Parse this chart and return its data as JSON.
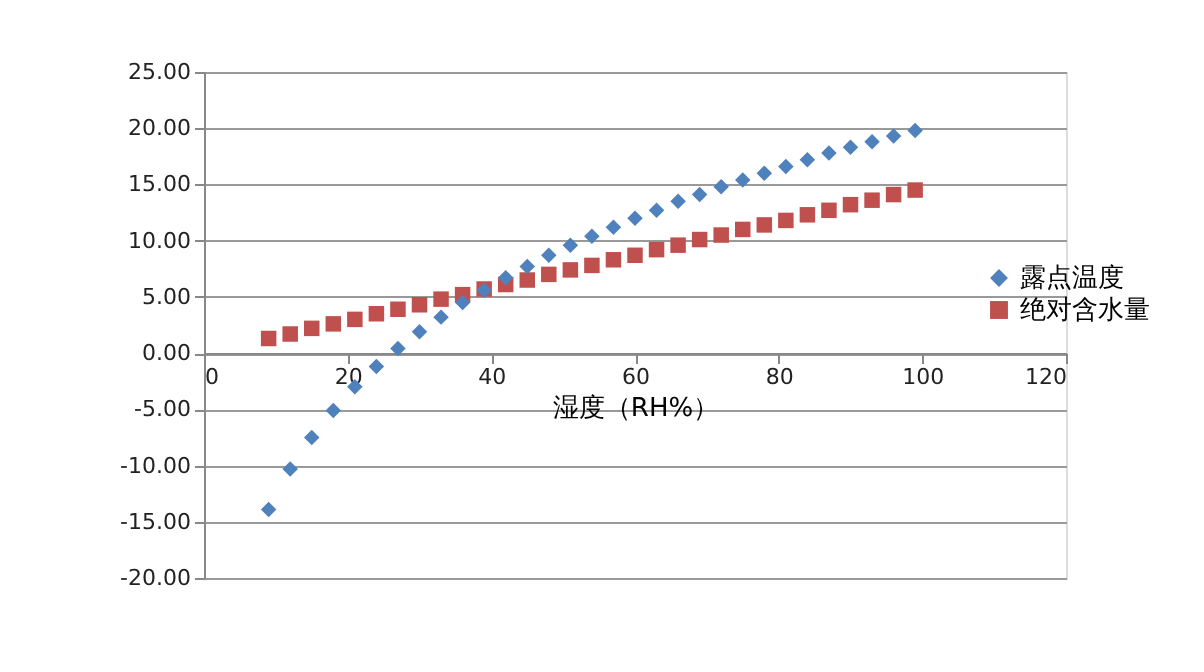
{
  "chart_data": {
    "type": "scatter",
    "xlabel": "湿度（RH%）",
    "x": [
      9,
      12,
      15,
      18,
      21,
      24,
      27,
      30,
      33,
      36,
      39,
      42,
      45,
      48,
      51,
      54,
      57,
      60,
      63,
      66,
      69,
      72,
      75,
      78,
      81,
      84,
      87,
      90,
      93,
      96,
      99
    ],
    "series": [
      {
        "name": "露点温度",
        "color": "#4f81bd",
        "marker": "diamond",
        "values": [
          -13.9,
          -10.3,
          -7.5,
          -5.1,
          -3.0,
          -1.2,
          0.4,
          1.9,
          3.2,
          4.5,
          5.6,
          6.7,
          7.7,
          8.7,
          9.6,
          10.4,
          11.2,
          12.0,
          12.7,
          13.5,
          14.1,
          14.8,
          15.4,
          16.0,
          16.6,
          17.2,
          17.8,
          18.3,
          18.8,
          19.3,
          19.8
        ]
      },
      {
        "name": "绝对含水量",
        "color": "#c0504d",
        "marker": "square",
        "values": [
          1.3,
          1.7,
          2.2,
          2.6,
          3.0,
          3.5,
          3.9,
          4.3,
          4.8,
          5.2,
          5.7,
          6.1,
          6.5,
          7.0,
          7.4,
          7.8,
          8.3,
          8.7,
          9.2,
          9.6,
          10.1,
          10.5,
          11.0,
          11.4,
          11.8,
          12.3,
          12.7,
          13.2,
          13.6,
          14.1,
          14.5
        ]
      }
    ],
    "xlim": [
      0,
      120
    ],
    "xticks": [
      0,
      20,
      40,
      60,
      80,
      100,
      120
    ],
    "ylim": [
      -20,
      25
    ],
    "yticks": [
      {
        "value": -20,
        "label": "-20.00"
      },
      {
        "value": -15,
        "label": "-15.00"
      },
      {
        "value": -10,
        "label": "-10.00"
      },
      {
        "value": -5,
        "label": "-5.00"
      },
      {
        "value": 0,
        "label": "0.00"
      },
      {
        "value": 5,
        "label": "5.00"
      },
      {
        "value": 10,
        "label": "10.00"
      },
      {
        "value": 15,
        "label": "15.00"
      },
      {
        "value": 20,
        "label": "20.00"
      },
      {
        "value": 25,
        "label": "25.00"
      }
    ],
    "grid": "y",
    "legend": "right"
  }
}
